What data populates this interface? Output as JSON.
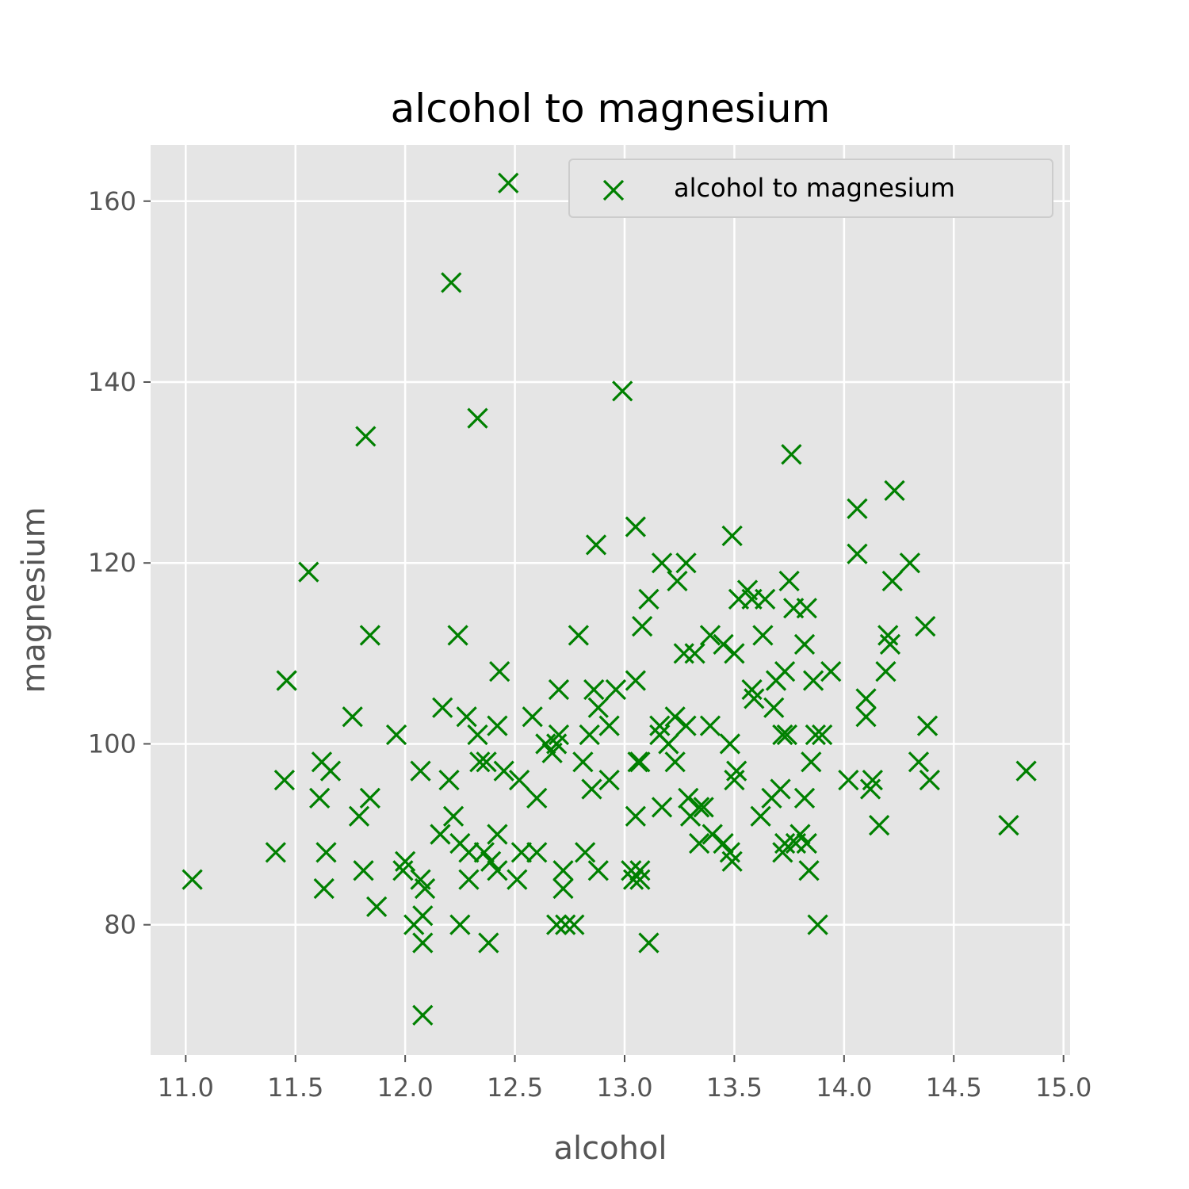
{
  "chart_data": {
    "type": "scatter",
    "title": "alcohol to magnesium",
    "xlabel": "alcohol",
    "ylabel": "magnesium",
    "xlim": [
      10.84,
      15.03
    ],
    "ylim": [
      65.6,
      166.2
    ],
    "xticks": [
      11.0,
      11.5,
      12.0,
      12.5,
      13.0,
      13.5,
      14.0,
      14.5,
      15.0
    ],
    "xtick_labels": [
      "11.0",
      "11.5",
      "12.0",
      "12.5",
      "13.0",
      "13.5",
      "14.0",
      "14.5",
      "15.0"
    ],
    "yticks": [
      80,
      100,
      120,
      140,
      160
    ],
    "ytick_labels": [
      "80",
      "100",
      "120",
      "140",
      "160"
    ],
    "grid": true,
    "legend": {
      "position": "top-right"
    },
    "series": [
      {
        "name": "alcohol to magnesium",
        "color": "#008000",
        "marker": "x",
        "points": [
          [
            11.03,
            85
          ],
          [
            11.41,
            88
          ],
          [
            11.45,
            96
          ],
          [
            11.46,
            107
          ],
          [
            11.56,
            119
          ],
          [
            11.61,
            94
          ],
          [
            11.62,
            98
          ],
          [
            11.63,
            84
          ],
          [
            11.64,
            88
          ],
          [
            11.66,
            97
          ],
          [
            11.76,
            103
          ],
          [
            11.79,
            92
          ],
          [
            11.81,
            86
          ],
          [
            11.82,
            134
          ],
          [
            11.84,
            112
          ],
          [
            11.84,
            94
          ],
          [
            11.87,
            82
          ],
          [
            11.96,
            101
          ],
          [
            11.99,
            86
          ],
          [
            12.0,
            87
          ],
          [
            12.04,
            80
          ],
          [
            12.07,
            85
          ],
          [
            12.07,
            97
          ],
          [
            12.08,
            78
          ],
          [
            12.08,
            70
          ],
          [
            12.08,
            81
          ],
          [
            12.09,
            84
          ],
          [
            12.16,
            90
          ],
          [
            12.17,
            104
          ],
          [
            12.2,
            96
          ],
          [
            12.21,
            151
          ],
          [
            12.22,
            92
          ],
          [
            12.24,
            112
          ],
          [
            12.25,
            80
          ],
          [
            12.25,
            89
          ],
          [
            12.28,
            103
          ],
          [
            12.29,
            85
          ],
          [
            12.29,
            88
          ],
          [
            12.33,
            101
          ],
          [
            12.33,
            136
          ],
          [
            12.34,
            98
          ],
          [
            12.36,
            88
          ],
          [
            12.37,
            98
          ],
          [
            12.38,
            78
          ],
          [
            12.39,
            87
          ],
          [
            12.42,
            102
          ],
          [
            12.42,
            90
          ],
          [
            12.42,
            86
          ],
          [
            12.43,
            108
          ],
          [
            12.45,
            97
          ],
          [
            12.47,
            162
          ],
          [
            12.51,
            85
          ],
          [
            12.52,
            96
          ],
          [
            12.53,
            88
          ],
          [
            12.58,
            103
          ],
          [
            12.6,
            94
          ],
          [
            12.6,
            88
          ],
          [
            12.64,
            100
          ],
          [
            12.67,
            99
          ],
          [
            12.69,
            80
          ],
          [
            12.69,
            100
          ],
          [
            12.7,
            101
          ],
          [
            12.7,
            106
          ],
          [
            12.72,
            84
          ],
          [
            12.72,
            86
          ],
          [
            12.73,
            80
          ],
          [
            12.77,
            80
          ],
          [
            12.79,
            112
          ],
          [
            12.81,
            98
          ],
          [
            12.82,
            88
          ],
          [
            12.84,
            101
          ],
          [
            12.85,
            95
          ],
          [
            12.86,
            106
          ],
          [
            12.87,
            122
          ],
          [
            12.88,
            86
          ],
          [
            12.88,
            104
          ],
          [
            12.93,
            102
          ],
          [
            12.93,
            96
          ],
          [
            12.96,
            106
          ],
          [
            12.99,
            139
          ],
          [
            13.03,
            86
          ],
          [
            13.04,
            85
          ],
          [
            13.05,
            92
          ],
          [
            13.05,
            124
          ],
          [
            13.05,
            107
          ],
          [
            13.06,
            98
          ],
          [
            13.07,
            86
          ],
          [
            13.07,
            85
          ],
          [
            13.07,
            98
          ],
          [
            13.08,
            113
          ],
          [
            13.11,
            116
          ],
          [
            13.11,
            78
          ],
          [
            13.16,
            101
          ],
          [
            13.16,
            102
          ],
          [
            13.17,
            93
          ],
          [
            13.17,
            120
          ],
          [
            13.2,
            100
          ],
          [
            13.23,
            103
          ],
          [
            13.23,
            98
          ],
          [
            13.24,
            118
          ],
          [
            13.27,
            110
          ],
          [
            13.28,
            102
          ],
          [
            13.28,
            120
          ],
          [
            13.29,
            94
          ],
          [
            13.3,
            92
          ],
          [
            13.32,
            110
          ],
          [
            13.34,
            89
          ],
          [
            13.34,
            93
          ],
          [
            13.36,
            93
          ],
          [
            13.39,
            102
          ],
          [
            13.39,
            112
          ],
          [
            13.4,
            90
          ],
          [
            13.45,
            111
          ],
          [
            13.45,
            89
          ],
          [
            13.48,
            100
          ],
          [
            13.48,
            88
          ],
          [
            13.49,
            87
          ],
          [
            13.49,
            123
          ],
          [
            13.5,
            96
          ],
          [
            13.5,
            110
          ],
          [
            13.51,
            97
          ],
          [
            13.52,
            116
          ],
          [
            13.56,
            117
          ],
          [
            13.58,
            116
          ],
          [
            13.58,
            106
          ],
          [
            13.59,
            105
          ],
          [
            13.62,
            92
          ],
          [
            13.63,
            112
          ],
          [
            13.64,
            116
          ],
          [
            13.67,
            94
          ],
          [
            13.68,
            104
          ],
          [
            13.69,
            107
          ],
          [
            13.71,
            95
          ],
          [
            13.72,
            88
          ],
          [
            13.72,
            101
          ],
          [
            13.73,
            89
          ],
          [
            13.73,
            108
          ],
          [
            13.74,
            101
          ],
          [
            13.75,
            118
          ],
          [
            13.76,
            132
          ],
          [
            13.77,
            115
          ],
          [
            13.78,
            89
          ],
          [
            13.8,
            90
          ],
          [
            13.82,
            111
          ],
          [
            13.82,
            94
          ],
          [
            13.83,
            115
          ],
          [
            13.83,
            89
          ],
          [
            13.84,
            86
          ],
          [
            13.85,
            98
          ],
          [
            13.86,
            107
          ],
          [
            13.87,
            101
          ],
          [
            13.88,
            80
          ],
          [
            13.9,
            101
          ],
          [
            13.94,
            108
          ],
          [
            14.02,
            96
          ],
          [
            14.06,
            126
          ],
          [
            14.06,
            121
          ],
          [
            14.1,
            103
          ],
          [
            14.1,
            105
          ],
          [
            14.12,
            95
          ],
          [
            14.13,
            96
          ],
          [
            14.16,
            91
          ],
          [
            14.19,
            108
          ],
          [
            14.2,
            112
          ],
          [
            14.21,
            111
          ],
          [
            14.22,
            118
          ],
          [
            14.23,
            128
          ],
          [
            14.3,
            120
          ],
          [
            14.34,
            98
          ],
          [
            14.37,
            113
          ],
          [
            14.38,
            102
          ],
          [
            14.39,
            96
          ],
          [
            14.75,
            91
          ],
          [
            14.83,
            97
          ]
        ]
      }
    ]
  }
}
